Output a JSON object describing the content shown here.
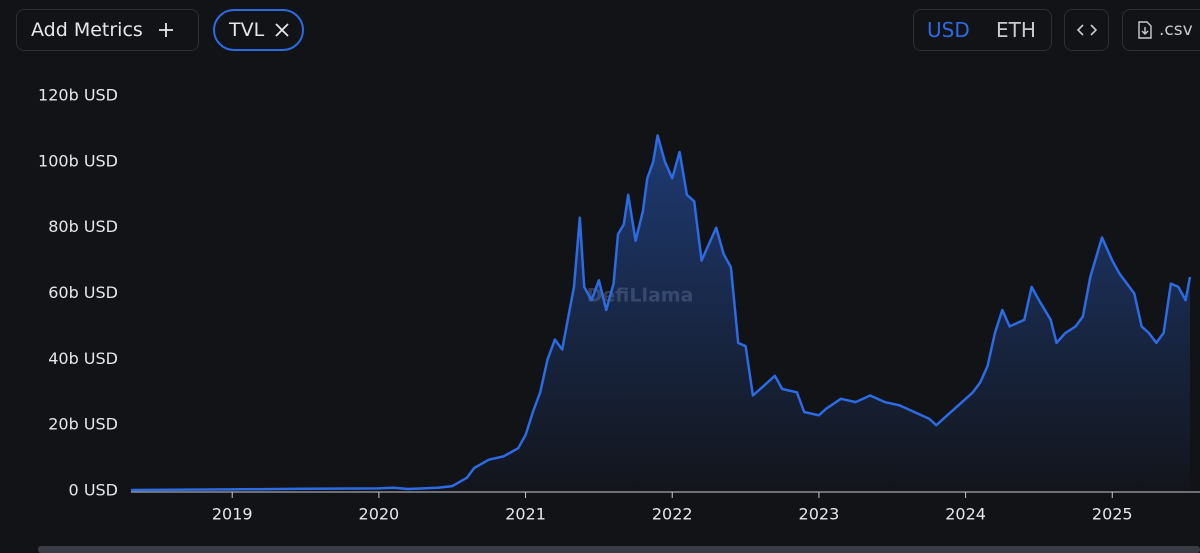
{
  "toolbar": {
    "add_metrics": "Add Metrics",
    "metric_chip": "TVL",
    "currency_options": [
      "USD",
      "ETH"
    ],
    "active_currency": "USD",
    "download": ".csv"
  },
  "chart_data": {
    "type": "area",
    "watermark": "DefiLlama",
    "color": "#2d6be4",
    "x": [
      2018.31,
      2019.0,
      2019.5,
      2020.0,
      2020.1,
      2020.2,
      2020.4,
      2020.5,
      2020.6,
      2020.65,
      2020.75,
      2020.85,
      2020.95,
      2021.0,
      2021.05,
      2021.1,
      2021.15,
      2021.2,
      2021.25,
      2021.3,
      2021.33,
      2021.37,
      2021.4,
      2021.45,
      2021.5,
      2021.55,
      2021.6,
      2021.63,
      2021.67,
      2021.7,
      2021.75,
      2021.8,
      2021.83,
      2021.87,
      2021.9,
      2021.95,
      2022.0,
      2022.05,
      2022.1,
      2022.15,
      2022.2,
      2022.25,
      2022.3,
      2022.35,
      2022.4,
      2022.45,
      2022.5,
      2022.55,
      2022.6,
      2022.7,
      2022.75,
      2022.85,
      2022.9,
      2023.0,
      2023.05,
      2023.15,
      2023.25,
      2023.35,
      2023.45,
      2023.55,
      2023.65,
      2023.75,
      2023.8,
      2023.85,
      2023.95,
      2024.05,
      2024.1,
      2024.15,
      2024.2,
      2024.25,
      2024.3,
      2024.4,
      2024.45,
      2024.5,
      2024.58,
      2024.62,
      2024.68,
      2024.75,
      2024.8,
      2024.85,
      2024.93,
      2025.0,
      2025.05,
      2025.15,
      2025.2,
      2025.25,
      2025.3,
      2025.35,
      2025.4,
      2025.45,
      2025.5,
      2025.53
    ],
    "values": [
      0.3,
      0.5,
      0.7,
      0.8,
      1.0,
      0.6,
      1.0,
      1.5,
      4,
      7,
      9.5,
      10.5,
      13,
      17,
      24,
      30,
      40,
      46,
      43,
      55,
      62,
      83,
      62,
      58,
      64,
      55,
      63,
      78,
      81,
      90,
      76,
      85,
      95,
      100,
      108,
      100,
      95,
      103,
      90,
      88,
      70,
      75,
      80,
      72,
      68,
      45,
      44,
      29,
      31,
      35,
      31,
      30,
      24,
      23,
      25,
      28,
      27,
      29,
      27,
      26,
      24,
      22,
      20,
      22,
      26,
      30,
      33,
      38,
      48,
      55,
      50,
      52,
      62,
      58,
      52,
      45,
      48,
      50,
      53,
      65,
      77,
      70,
      66,
      60,
      50,
      48,
      45,
      48,
      63,
      62,
      58,
      65
    ],
    "xlim": [
      2018.31,
      2025.53
    ],
    "xticks": [
      2019,
      2020,
      2021,
      2022,
      2023,
      2024,
      2025
    ],
    "ylim": [
      0,
      120
    ],
    "yticks": [
      {
        "value": 0,
        "label": "0 USD"
      },
      {
        "value": 20,
        "label": "20b USD"
      },
      {
        "value": 40,
        "label": "40b USD"
      },
      {
        "value": 60,
        "label": "60b USD"
      },
      {
        "value": 80,
        "label": "80b USD"
      },
      {
        "value": 100,
        "label": "100b USD"
      },
      {
        "value": 120,
        "label": "120b USD"
      }
    ]
  }
}
